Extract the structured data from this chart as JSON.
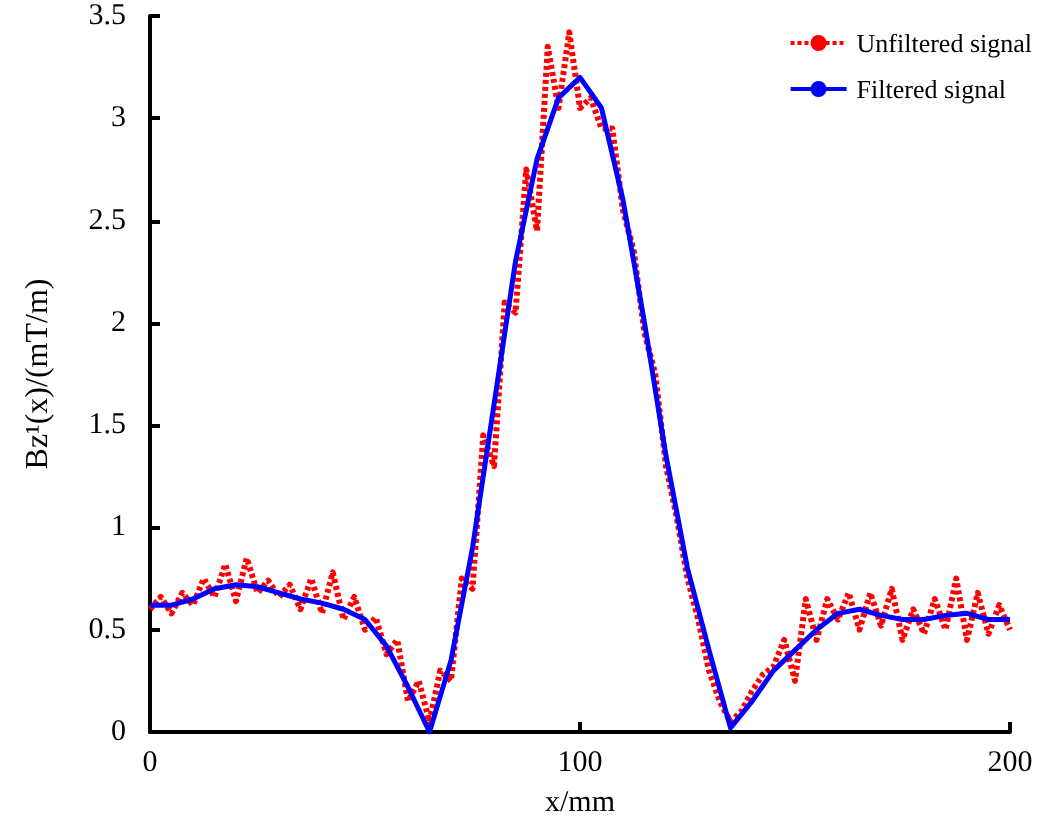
{
  "chart_data": {
    "type": "line",
    "xlabel": "x/mm",
    "ylabel": "Bz¹(x)/(mT/m)",
    "xlim": [
      0,
      200
    ],
    "xticks": [
      0,
      100,
      200
    ],
    "ylim": [
      0,
      3.5
    ],
    "yticks": [
      0,
      0.5,
      1,
      1.5,
      2,
      2.5,
      3,
      3.5
    ],
    "legend": "top right",
    "grid": false,
    "marker": "none",
    "series": [
      {
        "name": "Unfiltered signal",
        "color": "#ff0000",
        "line_style": "dotted",
        "x": [
          0,
          2.5,
          5,
          7.5,
          10,
          12.5,
          15,
          17.5,
          20,
          22.5,
          25,
          27.5,
          30,
          32.5,
          35,
          37.5,
          40,
          42.5,
          45,
          47.5,
          50,
          52.5,
          55,
          57.5,
          60,
          62.5,
          65,
          67.5,
          70,
          72.5,
          75,
          77.5,
          80,
          82.5,
          85,
          87.5,
          90,
          92.5,
          95,
          97.5,
          100,
          102.5,
          105,
          107.5,
          110,
          112.5,
          115,
          117.5,
          120,
          122.5,
          125,
          127.5,
          130,
          132.5,
          135,
          137.5,
          140,
          142.5,
          145,
          147.5,
          150,
          152.5,
          155,
          157.5,
          160,
          162.5,
          165,
          167.5,
          170,
          172.5,
          175,
          177.5,
          180,
          182.5,
          185,
          187.5,
          190,
          192.5,
          195,
          197.5,
          200
        ],
        "values": [
          0.6,
          0.66,
          0.58,
          0.68,
          0.62,
          0.75,
          0.66,
          0.82,
          0.64,
          0.85,
          0.68,
          0.74,
          0.66,
          0.72,
          0.6,
          0.75,
          0.58,
          0.78,
          0.55,
          0.66,
          0.5,
          0.56,
          0.38,
          0.45,
          0.15,
          0.25,
          0.05,
          0.3,
          0.25,
          0.75,
          0.7,
          1.45,
          1.3,
          2.1,
          2.05,
          2.75,
          2.45,
          3.35,
          3.05,
          3.42,
          3.05,
          3.1,
          2.95,
          2.95,
          2.55,
          2.35,
          1.95,
          1.75,
          1.3,
          1.05,
          0.75,
          0.55,
          0.3,
          0.15,
          0.05,
          0.1,
          0.2,
          0.28,
          0.32,
          0.45,
          0.25,
          0.65,
          0.45,
          0.65,
          0.55,
          0.68,
          0.5,
          0.68,
          0.52,
          0.7,
          0.45,
          0.6,
          0.48,
          0.65,
          0.5,
          0.75,
          0.45,
          0.68,
          0.48,
          0.62,
          0.5
        ]
      },
      {
        "name": "Filtered signal",
        "color": "#0000ff",
        "line_style": "solid",
        "x": [
          0,
          5,
          10,
          15,
          20,
          25,
          30,
          35,
          40,
          45,
          50,
          55,
          60,
          65,
          70,
          75,
          80,
          85,
          90,
          95,
          100,
          105,
          110,
          115,
          120,
          125,
          130,
          135,
          140,
          145,
          150,
          155,
          160,
          165,
          170,
          175,
          180,
          185,
          190,
          195,
          200
        ],
        "values": [
          0.62,
          0.62,
          0.65,
          0.7,
          0.72,
          0.71,
          0.68,
          0.65,
          0.63,
          0.6,
          0.55,
          0.42,
          0.22,
          0,
          0.35,
          0.9,
          1.6,
          2.3,
          2.8,
          3.1,
          3.2,
          3.05,
          2.6,
          2,
          1.35,
          0.8,
          0.4,
          0.02,
          0.15,
          0.3,
          0.4,
          0.5,
          0.58,
          0.6,
          0.57,
          0.55,
          0.55,
          0.57,
          0.58,
          0.55,
          0.55
        ]
      }
    ]
  }
}
